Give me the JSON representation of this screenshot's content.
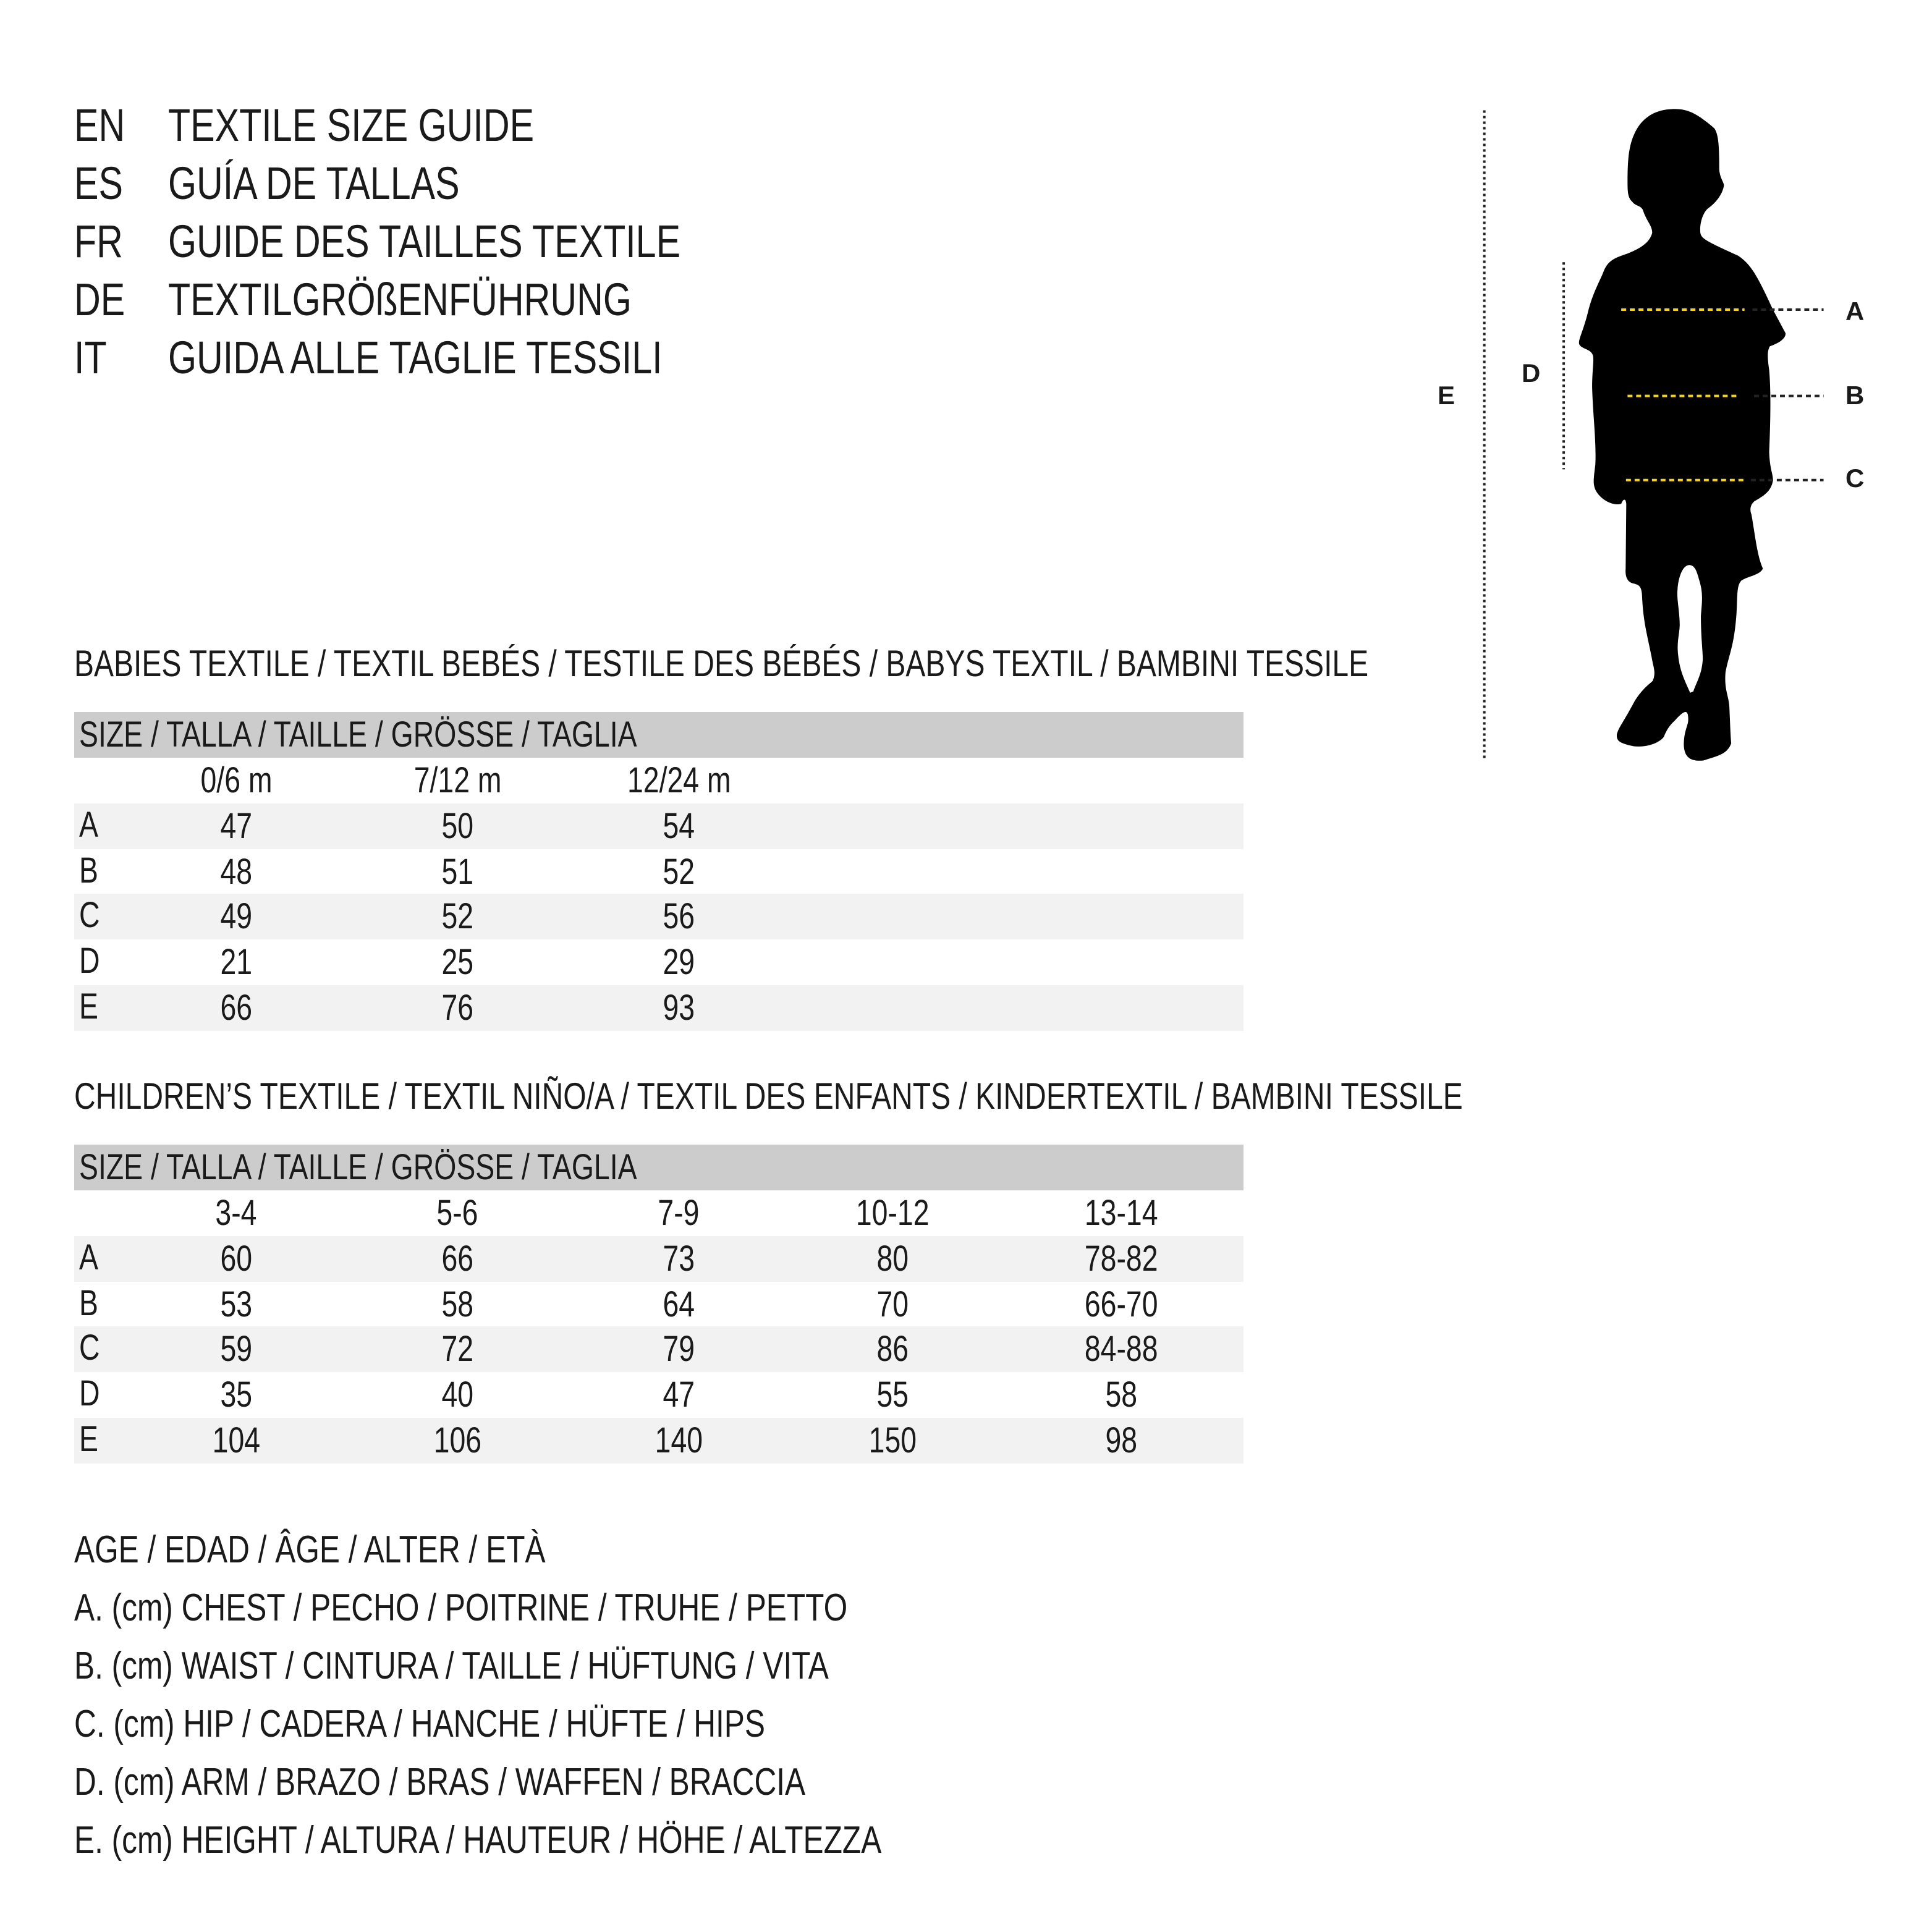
{
  "title_lines": [
    {
      "code": "EN",
      "text": "TEXTILE SIZE GUIDE"
    },
    {
      "code": "ES",
      "text": "GUÍA DE TALLAS"
    },
    {
      "code": "FR",
      "text": "GUIDE DES TAILLES TEXTILE"
    },
    {
      "code": "DE",
      "text": "TEXTILGRÖßENFÜHRUNG"
    },
    {
      "code": "IT",
      "text": "GUIDA ALLE TAGLIE TESSILI"
    }
  ],
  "figure": {
    "labels": {
      "A": "A",
      "B": "B",
      "C": "C",
      "D": "D",
      "E": "E"
    },
    "colors": {
      "measure_line": "#f2d21b",
      "dots": "#222222",
      "silhouette": "#000000"
    }
  },
  "babies": {
    "heading": "BABIES TEXTILE / TEXTIL BEBÉS / TESTILE DES BÉBÉS / BABYS TEXTIL / BAMBINI TESSILE",
    "size_header": "SIZE / TALLA / TAILLE / GRÖSSE / TAGLIA",
    "columns": [
      "0/6 m",
      "7/12 m",
      "12/24 m"
    ],
    "rows": [
      {
        "label": "A",
        "values": [
          "47",
          "50",
          "54"
        ]
      },
      {
        "label": "B",
        "values": [
          "48",
          "51",
          "52"
        ]
      },
      {
        "label": "C",
        "values": [
          "49",
          "52",
          "56"
        ]
      },
      {
        "label": "D",
        "values": [
          "21",
          "25",
          "29"
        ]
      },
      {
        "label": "E",
        "values": [
          "66",
          "76",
          "93"
        ]
      }
    ]
  },
  "children": {
    "heading": "CHILDREN’S TEXTILE / TEXTIL NIÑO/A / TEXTIL DES ENFANTS / KINDERTEXTIL / BAMBINI TESSILE",
    "size_header": "SIZE / TALLA / TAILLE / GRÖSSE / TAGLIA",
    "columns": [
      "3-4",
      "5-6",
      "7-9",
      "10-12",
      "13-14"
    ],
    "rows": [
      {
        "label": "A",
        "values": [
          "60",
          "66",
          "73",
          "80",
          "78-82"
        ]
      },
      {
        "label": "B",
        "values": [
          "53",
          "58",
          "64",
          "70",
          "66-70"
        ]
      },
      {
        "label": "C",
        "values": [
          "59",
          "72",
          "79",
          "86",
          "84-88"
        ]
      },
      {
        "label": "D",
        "values": [
          "35",
          "40",
          "47",
          "55",
          "58"
        ]
      },
      {
        "label": "E",
        "values": [
          "104",
          "106",
          "140",
          "150",
          "98"
        ]
      }
    ]
  },
  "legend": [
    "AGE / EDAD / ÂGE / ALTER / ETÀ",
    "A. (cm) CHEST / PECHO / POITRINE / TRUHE / PETTO",
    "B. (cm) WAIST / CINTURA / TAILLE / HÜFTUNG / VITA",
    "C. (cm) HIP / CADERA / HANCHE / HÜFTE / HIPS",
    "D. (cm) ARM / BRAZO / BRAS / WAFFEN / BRACCIA",
    "E. (cm) HEIGHT / ALTURA / HAUTEUR / HÖHE / ALTEZZA"
  ]
}
